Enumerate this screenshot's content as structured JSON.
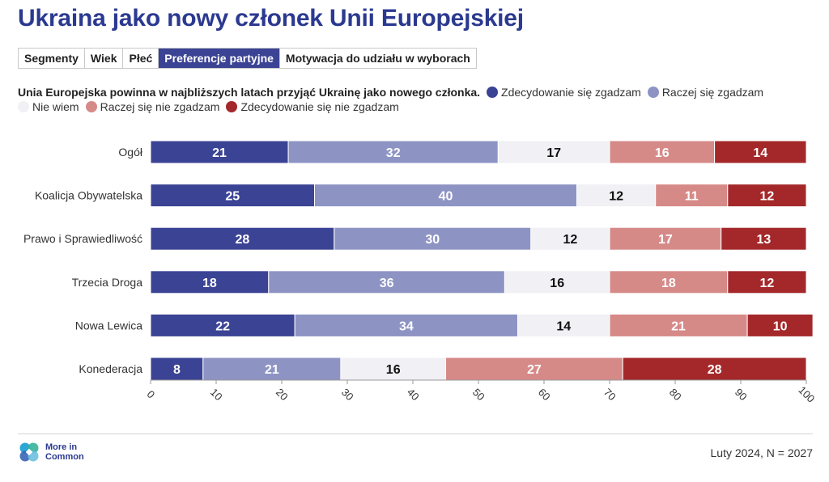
{
  "title": "Ukraina jako nowy członek Unii Europejskiej",
  "tabs": [
    {
      "label": "Segmenty"
    },
    {
      "label": "Wiek"
    },
    {
      "label": "Płeć"
    },
    {
      "label": "Preferencje partyjne"
    },
    {
      "label": "Motywacja do udziału w wyborach"
    }
  ],
  "active_tab": "Preferencje partyjne",
  "question": "Unia Europejska powinna w najbliższych latach przyjąć Ukrainę jako nowego członka.",
  "legend": [
    {
      "label": "Zdecydowanie się zgadzam",
      "color": "#3b4394"
    },
    {
      "label": "Raczej się zgadzam",
      "color": "#8d94c4"
    },
    {
      "label": "Nie wiem",
      "color": "#f0f0f5"
    },
    {
      "label": "Raczej się nie zgadzam",
      "color": "#d68a88"
    },
    {
      "label": "Zdecydowanie się nie zgadzam",
      "color": "#a4282a"
    }
  ],
  "chart_data": {
    "type": "bar",
    "orientation": "horizontal",
    "stacked": true,
    "categories": [
      "Ogół",
      "Koalicja Obywatelska",
      "Prawo i Sprawiedliwość",
      "Trzecia Droga",
      "Nowa Lewica",
      "Konederacja"
    ],
    "series": [
      {
        "name": "Zdecydowanie się zgadzam",
        "color": "#3b4394",
        "values": [
          21,
          25,
          28,
          18,
          22,
          8
        ]
      },
      {
        "name": "Raczej się zgadzam",
        "color": "#8d94c4",
        "values": [
          32,
          40,
          30,
          36,
          34,
          21
        ]
      },
      {
        "name": "Nie wiem",
        "color": "#f0f0f5",
        "values": [
          17,
          12,
          12,
          16,
          14,
          16
        ]
      },
      {
        "name": "Raczej się nie zgadzam",
        "color": "#d68a88",
        "values": [
          16,
          11,
          17,
          18,
          21,
          27
        ]
      },
      {
        "name": "Zdecydowanie się nie zgadzam",
        "color": "#a4282a",
        "values": [
          14,
          12,
          13,
          12,
          10,
          28
        ]
      }
    ],
    "xlim": [
      0,
      100
    ],
    "xticks": [
      0,
      10,
      20,
      30,
      40,
      50,
      60,
      70,
      80,
      90,
      100
    ],
    "xlabel": "",
    "ylabel": ""
  },
  "logo": {
    "line1": "More in",
    "line2": "Common"
  },
  "source": "Luty 2024, N = 2027"
}
